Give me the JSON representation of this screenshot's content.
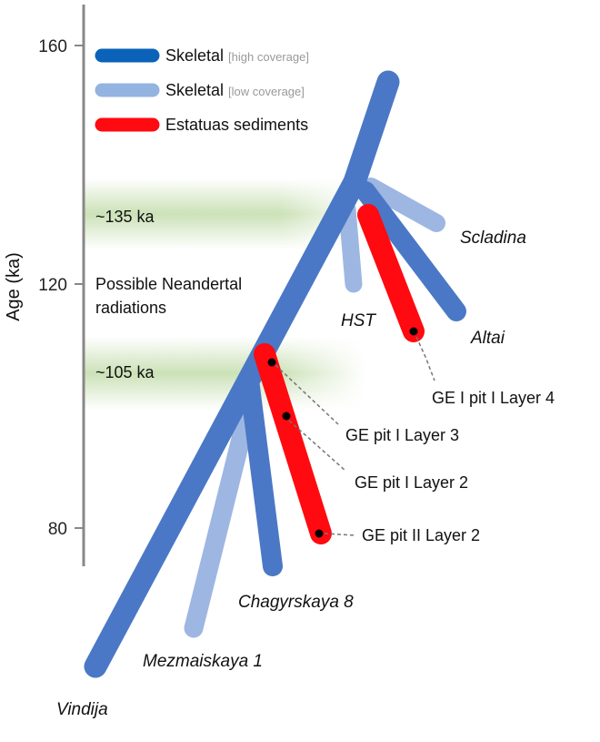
{
  "axis": {
    "title": "Age (ka)",
    "ticks": [
      {
        "label": "160",
        "value": 160
      },
      {
        "label": "120",
        "value": 120
      },
      {
        "label": "80",
        "value": 80
      }
    ]
  },
  "legend": {
    "items": [
      {
        "name": "Skeletal",
        "note": "[high coverage]",
        "color": "#0a63b8"
      },
      {
        "name": "Skeletal",
        "note": "[low coverage]",
        "color": "#93b3e0"
      },
      {
        "name": "Estatuas sediments",
        "note": "",
        "color": "#ff0a10"
      }
    ]
  },
  "bands": [
    {
      "label": "~135 ka",
      "age": 135
    },
    {
      "label": "~105 ka",
      "age": 105
    }
  ],
  "annotation": {
    "line1": "Possible Neandertal",
    "line2": "radiations"
  },
  "lineages": [
    {
      "name": "Vindija"
    },
    {
      "name": "Mezmaiskaya 1"
    },
    {
      "name": "Chagyrskaya 8"
    },
    {
      "name": "HST"
    },
    {
      "name": "Altai"
    },
    {
      "name": "Scladina"
    }
  ],
  "sediment_samples": [
    {
      "label": "GE I pit I Layer 4"
    },
    {
      "label": "GE pit I Layer 3"
    },
    {
      "label": "GE pit I Layer 2"
    },
    {
      "label": "GE pit II Layer 2"
    }
  ],
  "colors": {
    "high": "#4a78c6",
    "low": "#9db7e2",
    "sediment": "#ff0a10",
    "band": "#c9e0b4",
    "axis": "#888888"
  }
}
